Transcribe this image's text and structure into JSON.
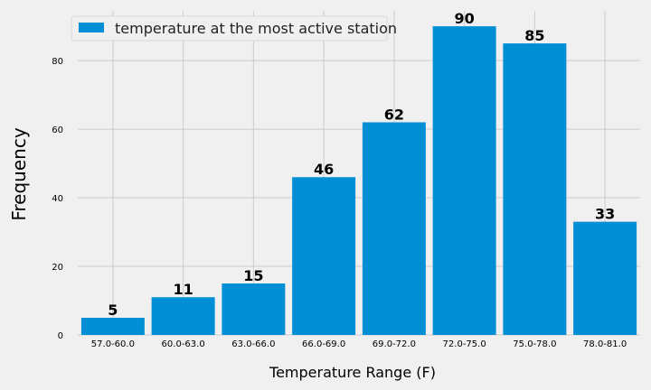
{
  "chart_data": {
    "type": "bar",
    "categories": [
      "57.0-60.0",
      "60.0-63.0",
      "63.0-66.0",
      "66.0-69.0",
      "69.0-72.0",
      "72.0-75.0",
      "75.0-78.0",
      "78.0-81.0"
    ],
    "series": [
      {
        "name": "temperature at the most active station",
        "values": [
          5,
          11,
          15,
          46,
          62,
          90,
          85,
          33
        ],
        "color": "#008fd5"
      }
    ],
    "title": "",
    "xlabel": "Temperature Range (F)",
    "ylabel": "Frequency",
    "ylim": [
      0,
      94.5
    ],
    "yticks": [
      0,
      20,
      40,
      60,
      80
    ],
    "grid": true,
    "legend": "top-left",
    "data_labels": true
  }
}
